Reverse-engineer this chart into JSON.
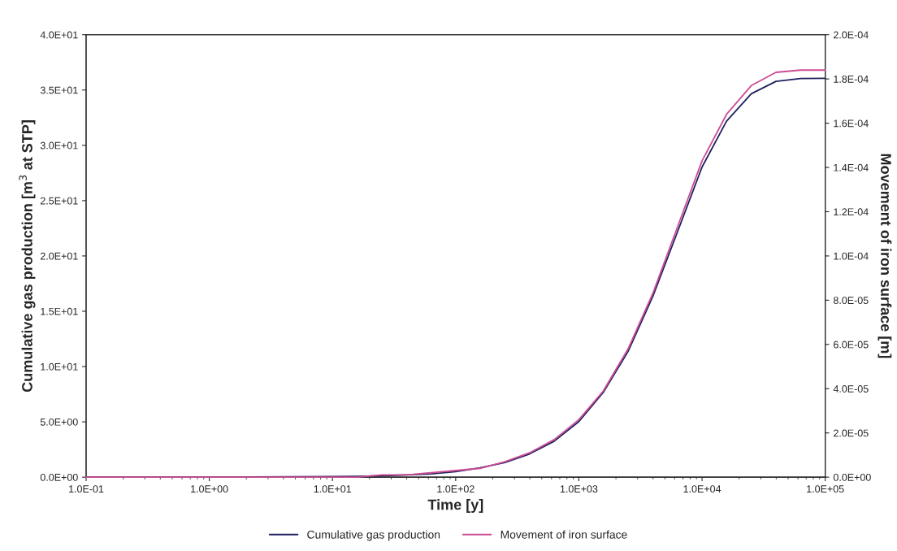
{
  "chart_data": {
    "type": "line",
    "xlabel": "Time [y]",
    "ylabel": "Cumulative gas production [m$^{3}$ at STP]",
    "y2label": "Movement of iron surface [m]",
    "log": "x",
    "grid": false,
    "legend": "bottom",
    "marker": "none",
    "line_style": "solid",
    "xlim": [
      0.1,
      100000
    ],
    "xticks": [
      {
        "value": 0.1,
        "label": "1.0E-01"
      },
      {
        "value": 1,
        "label": "1.0E+00"
      },
      {
        "value": 10,
        "label": "1.0E+01"
      },
      {
        "value": 100,
        "label": "1.0E+02"
      },
      {
        "value": 1000,
        "label": "1.0E+03"
      },
      {
        "value": 10000,
        "label": "1.0E+04"
      },
      {
        "value": 100000,
        "label": "1.0E+05"
      }
    ],
    "ylim": [
      0,
      40
    ],
    "yticks": [
      {
        "value": 0,
        "label": "0.0E+00"
      },
      {
        "value": 5,
        "label": "5.0E+00"
      },
      {
        "value": 10,
        "label": "1.0E+01"
      },
      {
        "value": 15,
        "label": "1.5E+01"
      },
      {
        "value": 20,
        "label": "2.0E+01"
      },
      {
        "value": 25,
        "label": "2.5E+01"
      },
      {
        "value": 30,
        "label": "3.0E+01"
      },
      {
        "value": 35,
        "label": "3.5E+01"
      },
      {
        "value": 40,
        "label": "4.0E+01"
      }
    ],
    "y2lim": [
      0,
      0.0002
    ],
    "y2ticks": [
      {
        "value": 0,
        "label": "0.0E+00"
      },
      {
        "value": 2e-05,
        "label": "2.0E-05"
      },
      {
        "value": 4e-05,
        "label": "4.0E-05"
      },
      {
        "value": 6e-05,
        "label": "6.0E-05"
      },
      {
        "value": 8e-05,
        "label": "8.0E-05"
      },
      {
        "value": 0.0001,
        "label": "1.0E-04"
      },
      {
        "value": 0.00012,
        "label": "1.2E-04"
      },
      {
        "value": 0.00014,
        "label": "1.4E-04"
      },
      {
        "value": 0.00016,
        "label": "1.6E-04"
      },
      {
        "value": 0.00018,
        "label": "1.8E-04"
      },
      {
        "value": 0.0002,
        "label": "2.0E-04"
      }
    ],
    "x": [
      0.1,
      1,
      10,
      15.8,
      25.1,
      39.8,
      63.1,
      100,
      158,
      251,
      398,
      631,
      1000,
      1580,
      2510,
      3980,
      6310,
      10000,
      15800,
      25100,
      39800,
      63100,
      100000
    ],
    "series": [
      {
        "name": "Cumulative gas production",
        "color": "#1f2060",
        "values": [
          0,
          0,
          0.05,
          0.08,
          0.12,
          0.2,
          0.3,
          0.5,
          0.85,
          1.33,
          2.1,
          3.25,
          5.03,
          7.67,
          11.37,
          16.33,
          22.16,
          28.04,
          32.18,
          34.66,
          35.78,
          36.04,
          36.06
        ]
      },
      {
        "name": "Movement of iron surface",
        "color": "#cc4c94",
        "axis": "y2",
        "values": [
          0,
          0,
          0,
          0,
          1e-06,
          1e-06,
          2e-06,
          3e-06,
          4e-06,
          7e-06,
          1.1e-05,
          1.7e-05,
          2.6e-05,
          3.9e-05,
          5.8e-05,
          8.3e-05,
          0.000113,
          0.000143,
          0.000164,
          0.000177,
          0.000183,
          0.000184,
          0.000184
        ]
      }
    ]
  }
}
